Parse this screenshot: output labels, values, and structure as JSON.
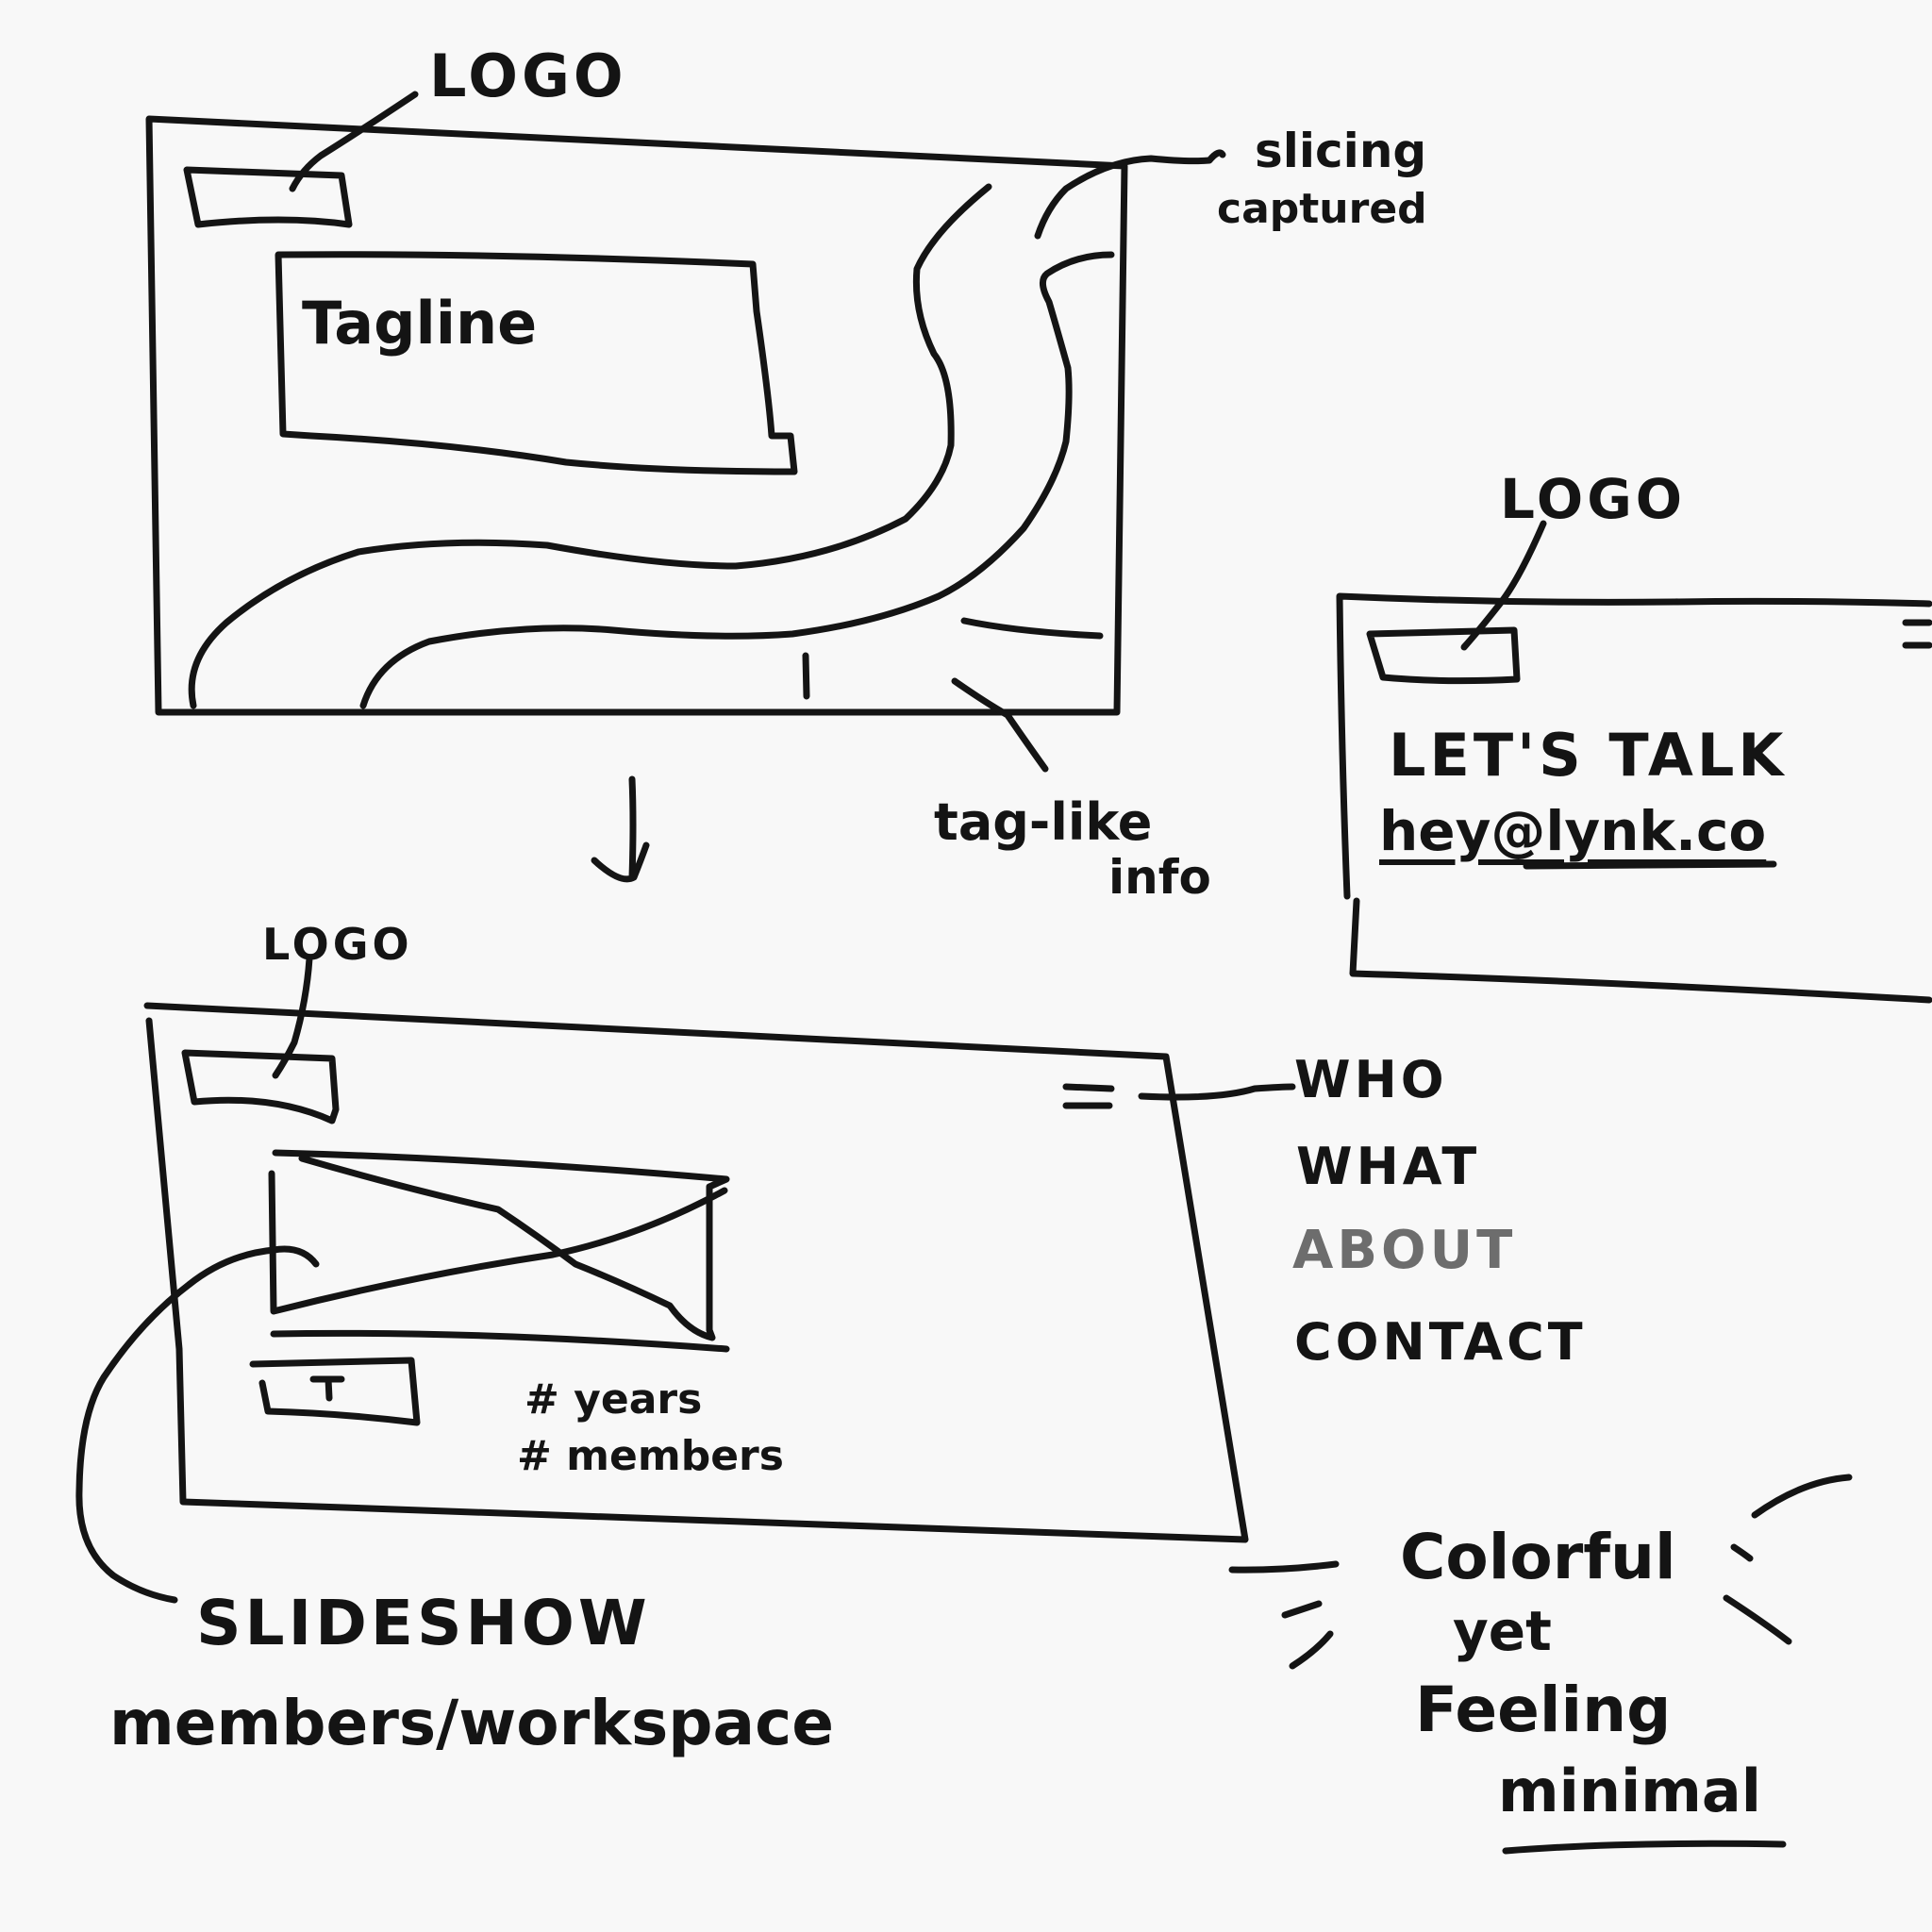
{
  "hero_sketch": {
    "logo_label": "LOGO",
    "tagline_label": "Tagline",
    "slicing_label_1": "slicing",
    "slicing_label_2": "captured",
    "tag_label_1": "tag-like",
    "tag_label_2": "info"
  },
  "contact_sketch": {
    "logo_label": "LOGO",
    "heading": "LET'S TALK",
    "email": "hey@lynk.co"
  },
  "about_sketch": {
    "logo_label": "LOGO",
    "stats": [
      "# years",
      "# members"
    ],
    "menu_items": [
      "WHO",
      "WHAT",
      "ABOUT",
      "CONTACT"
    ]
  },
  "notes": {
    "slideshow_line_1": "SLIDESHOW",
    "slideshow_line_2": "members/workspace",
    "mood_line_1": "Colorful",
    "mood_line_2": "yet",
    "mood_line_3": "Feeling",
    "mood_line_4": "minimal"
  }
}
